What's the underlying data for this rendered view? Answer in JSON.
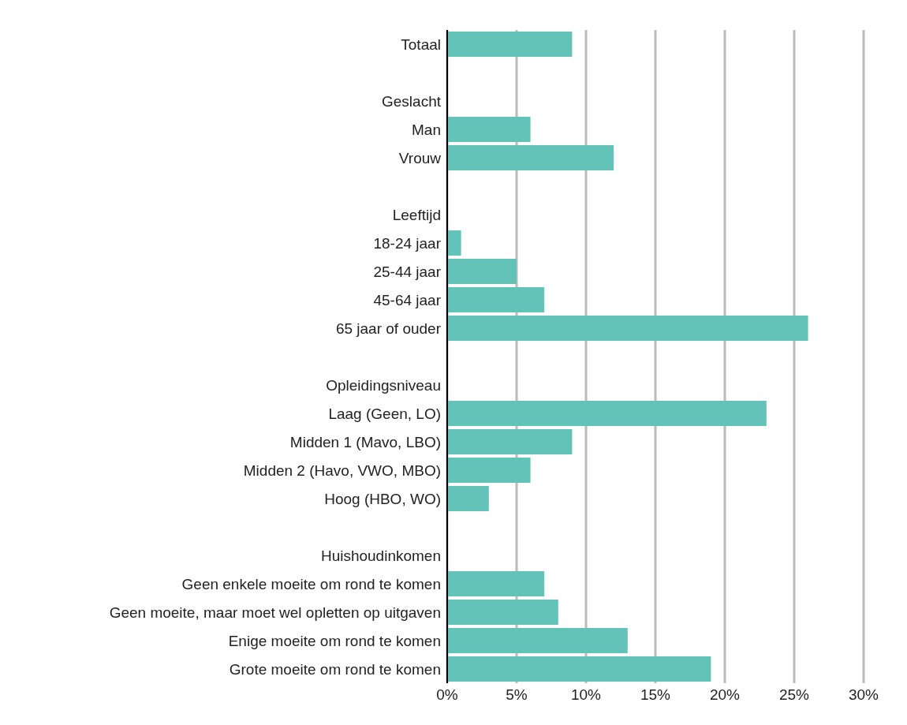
{
  "chart_data": {
    "type": "bar",
    "orientation": "horizontal",
    "categories": [
      "Totaal",
      null,
      "Geslacht",
      "Man",
      "Vrouw",
      null,
      "Leeftijd",
      "18-24 jaar",
      "25-44 jaar",
      "45-64 jaar",
      "65 jaar of ouder",
      null,
      "Opleidingsniveau",
      "Laag (Geen, LO)",
      "Midden 1 (Mavo, LBO)",
      "Midden 2 (Havo, VWO, MBO)",
      "Hoog (HBO, WO)",
      null,
      "Huishoudinkomen",
      "Geen enkele moeite om rond te komen",
      "Geen moeite, maar moet wel opletten op uitgaven",
      "Enige moeite om rond te komen",
      "Grote moeite om rond te komen"
    ],
    "values": [
      9,
      null,
      null,
      6,
      12,
      null,
      null,
      1,
      5,
      7,
      26,
      null,
      null,
      23,
      9,
      6,
      3,
      null,
      null,
      7,
      8,
      13,
      19
    ],
    "color": "#63c3b8",
    "xlim": [
      0,
      30
    ],
    "xticks": [
      {
        "value": 0,
        "label": "0%"
      },
      {
        "value": 5,
        "label": "5%"
      },
      {
        "value": 10,
        "label": "10%"
      },
      {
        "value": 15,
        "label": "15%"
      },
      {
        "value": 20,
        "label": "20%"
      },
      {
        "value": 25,
        "label": "25%"
      },
      {
        "value": 30,
        "label": "30%"
      }
    ],
    "grid": "x"
  }
}
